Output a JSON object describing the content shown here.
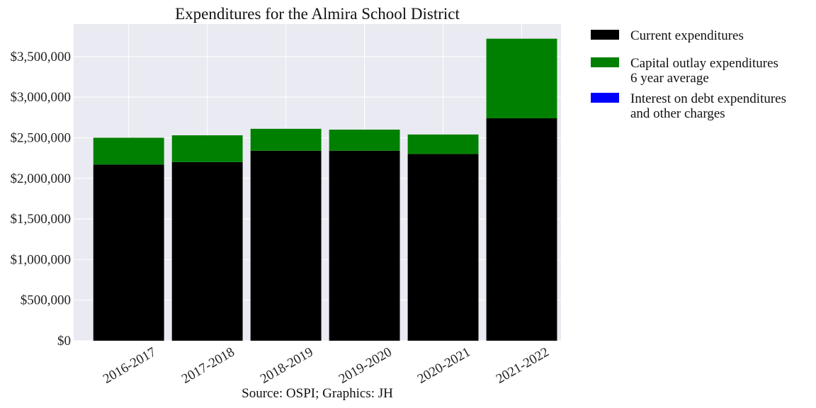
{
  "chart_data": {
    "type": "bar",
    "stacked": true,
    "title": "Expenditures for the Almira School District",
    "caption": "Source: OSPI; Graphics: JH",
    "xlabel": "",
    "ylabel": "",
    "ylim": [
      0,
      3900000
    ],
    "yticks": [
      0,
      500000,
      1000000,
      1500000,
      2000000,
      2500000,
      3000000,
      3500000
    ],
    "ytick_labels": [
      "$0",
      "$500,000",
      "$1,000,000",
      "$1,500,000",
      "$2,000,000",
      "$2,500,000",
      "$3,000,000",
      "$3,500,000"
    ],
    "grid": true,
    "legend_position": "outside-right",
    "categories": [
      "2016-2017",
      "2017-2018",
      "2018-2019",
      "2019-2020",
      "2020-2021",
      "2021-2022"
    ],
    "series": [
      {
        "name": "Current expenditures",
        "color": "#000000",
        "values": [
          2170000,
          2200000,
          2340000,
          2340000,
          2300000,
          2740000
        ]
      },
      {
        "name": "Capital outlay expenditures",
        "name_line2": "6 year average",
        "color": "#008000",
        "values": [
          330000,
          330000,
          270000,
          260000,
          240000,
          980000
        ]
      },
      {
        "name": "Interest on debt expenditures",
        "name_line2": "and other charges",
        "color": "#0000ff",
        "values": [
          0,
          0,
          0,
          0,
          0,
          0
        ]
      }
    ]
  }
}
